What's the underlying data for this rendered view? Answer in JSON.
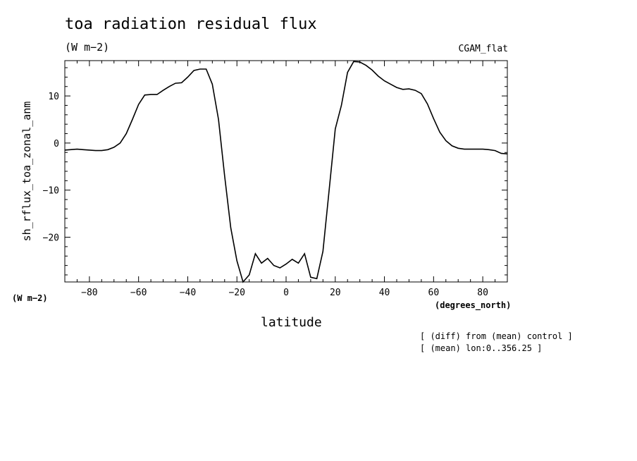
{
  "chart_data": {
    "type": "line",
    "title": "toa radiation residual flux",
    "subtitle": "(W m−2)",
    "case_label": "CGAM_flat",
    "xlabel": "latitude",
    "xunits": "(degrees_north)",
    "ylabel": "sh_rflux_toa_zonal_anm",
    "yunits": "(W m−2)",
    "xlim": [
      -90,
      90
    ],
    "ylim": [
      -29.5,
      17.5
    ],
    "xticks": [
      -80,
      -60,
      -40,
      -20,
      0,
      20,
      40,
      60,
      80
    ],
    "xtick_labels": [
      "−80",
      "−60",
      "−40",
      "−20",
      "0",
      "20",
      "40",
      "60",
      "80"
    ],
    "yticks": [
      -20,
      -10,
      0,
      10
    ],
    "ytick_labels": [
      "−20",
      "−10",
      "0",
      "10"
    ],
    "notes": [
      "[ (diff) from (mean) control ]",
      "[ (mean) lon:0..356.25 ]"
    ],
    "series": [
      {
        "x": [
          -90,
          -85,
          -82.5,
          -80,
          -77.5,
          -75,
          -72.5,
          -70,
          -67.5,
          -65,
          -62.5,
          -60,
          -57.5,
          -55,
          -52.5,
          -50,
          -47.5,
          -45,
          -42.5,
          -40,
          -37.5,
          -35,
          -32.5,
          -30,
          -27.5,
          -25,
          -22.5,
          -20,
          -17.5,
          -15,
          -12.5,
          -10,
          -7.5,
          -5,
          -2.5,
          0,
          2.5,
          5,
          7.5,
          10,
          12.5,
          15,
          17.5,
          20,
          22.5,
          25,
          27.5,
          30,
          32.5,
          35,
          37.5,
          40,
          42.5,
          45,
          47.5,
          50,
          52.5,
          55,
          57.5,
          60,
          62.5,
          65,
          67.5,
          70,
          72.5,
          75,
          77.5,
          80,
          82.5,
          85,
          87.5,
          90
        ],
        "y": [
          -1.5,
          -1.3,
          -1.4,
          -1.5,
          -1.6,
          -1.6,
          -1.4,
          -0.9,
          0,
          2,
          5,
          8.2,
          10.2,
          10.3,
          10.3,
          11.2,
          12,
          12.7,
          12.8,
          14,
          15.4,
          15.7,
          15.7,
          12.5,
          5,
          -7,
          -18,
          -25,
          -29.5,
          -28,
          -23.5,
          -25.5,
          -24.5,
          -26,
          -26.5,
          -25.7,
          -24.7,
          -25.5,
          -23.5,
          -28.5,
          -28.8,
          -23,
          -10,
          3,
          8,
          15,
          17.3,
          17.2,
          16.5,
          15.5,
          14.2,
          13.2,
          12.5,
          11.8,
          11.4,
          11.5,
          11.2,
          10.5,
          8.3,
          5.2,
          2.3,
          0.5,
          -0.6,
          -1.1,
          -1.3,
          -1.3,
          -1.3,
          -1.3,
          -1.4,
          -1.6,
          -2.2,
          -2.3
        ]
      }
    ]
  }
}
